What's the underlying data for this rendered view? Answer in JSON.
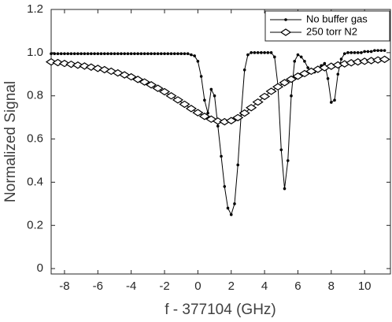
{
  "chart_data": {
    "type": "line",
    "xlabel": "f - 377104 (GHz)",
    "ylabel": "Normalized Signal",
    "xlim": [
      -8.8,
      11.55
    ],
    "ylim": [
      -0.025,
      1.2
    ],
    "xticks": [
      -8,
      -6,
      -4,
      -2,
      0,
      2,
      4,
      6,
      8,
      10
    ],
    "yticks": [
      0,
      0.2,
      0.4,
      0.6,
      0.8,
      {
        "value": 1,
        "label": "1.0"
      },
      1.2
    ],
    "grid": false,
    "legend": "upper right",
    "series": [
      {
        "name": "No buffer gas",
        "color": "#000000",
        "marker": "dot",
        "x": [
          -8.8,
          -8.6,
          -8.4,
          -8.2,
          -8.0,
          -7.8,
          -7.6,
          -7.4,
          -7.2,
          -7.0,
          -6.8,
          -6.6,
          -6.4,
          -6.2,
          -6.0,
          -5.8,
          -5.6,
          -5.4,
          -5.2,
          -5.0,
          -4.8,
          -4.6,
          -4.4,
          -4.2,
          -4.0,
          -3.8,
          -3.6,
          -3.4,
          -3.2,
          -3.0,
          -2.8,
          -2.6,
          -2.4,
          -2.2,
          -2.0,
          -1.8,
          -1.6,
          -1.4,
          -1.2,
          -1.0,
          -0.8,
          -0.6,
          -0.4,
          -0.2,
          0,
          0.2,
          0.4,
          0.6,
          0.8,
          1.0,
          1.2,
          1.4,
          1.6,
          1.8,
          2.0,
          2.2,
          2.4,
          2.6,
          2.8,
          3.0,
          3.2,
          3.4,
          3.6,
          3.8,
          4.0,
          4.2,
          4.4,
          4.6,
          4.8,
          5.0,
          5.2,
          5.4,
          5.6,
          5.8,
          6.0,
          6.2,
          6.4,
          6.6,
          6.8,
          7.0,
          7.2,
          7.4,
          7.6,
          7.8,
          8.0,
          8.2,
          8.4,
          8.6,
          8.8,
          9.0,
          9.2,
          9.4,
          9.6,
          9.8,
          10.0,
          10.2,
          10.4,
          10.6,
          10.8,
          11.0,
          11.2
        ],
        "values": [
          0.995,
          0.995,
          0.995,
          0.995,
          0.995,
          0.995,
          0.995,
          0.995,
          0.995,
          0.995,
          0.995,
          0.995,
          0.995,
          0.995,
          0.995,
          0.995,
          0.995,
          0.995,
          0.995,
          0.995,
          0.995,
          0.995,
          0.995,
          0.995,
          0.995,
          0.995,
          0.995,
          0.995,
          0.995,
          0.995,
          0.995,
          0.995,
          0.995,
          0.995,
          0.995,
          0.995,
          0.995,
          0.995,
          0.995,
          0.995,
          0.995,
          0.995,
          0.99,
          0.985,
          0.96,
          0.89,
          0.78,
          0.72,
          0.83,
          0.8,
          0.66,
          0.52,
          0.38,
          0.28,
          0.25,
          0.3,
          0.48,
          0.72,
          0.92,
          0.99,
          1.0,
          1.0,
          1.0,
          1.0,
          1.0,
          1.0,
          1.0,
          0.98,
          0.85,
          0.55,
          0.37,
          0.5,
          0.8,
          0.96,
          0.99,
          0.98,
          0.96,
          0.93,
          0.91,
          0.91,
          0.92,
          0.94,
          0.95,
          0.88,
          0.77,
          0.78,
          0.9,
          0.97,
          0.995,
          1.0,
          1.0,
          1.0,
          1.0,
          1.0,
          1.005,
          1.005,
          1.005,
          1.01,
          1.01,
          1.01,
          1.01
        ]
      },
      {
        "name": "250 torr N2",
        "color": "#000000",
        "marker": "diamond",
        "x": [
          -8.8,
          -8.4,
          -8.0,
          -7.6,
          -7.2,
          -6.8,
          -6.4,
          -6.0,
          -5.6,
          -5.2,
          -4.8,
          -4.4,
          -4.0,
          -3.6,
          -3.2,
          -2.8,
          -2.4,
          -2.0,
          -1.6,
          -1.2,
          -0.8,
          -0.4,
          0,
          0.4,
          0.8,
          1.2,
          1.6,
          2.0,
          2.4,
          2.8,
          3.2,
          3.6,
          4.0,
          4.4,
          4.8,
          5.2,
          5.6,
          6.0,
          6.4,
          6.8,
          7.2,
          7.6,
          8.0,
          8.4,
          8.8,
          9.2,
          9.6,
          10.0,
          10.4,
          10.8,
          11.2
        ],
        "values": [
          0.957,
          0.954,
          0.95,
          0.946,
          0.942,
          0.938,
          0.933,
          0.927,
          0.921,
          0.914,
          0.906,
          0.897,
          0.888,
          0.876,
          0.864,
          0.851,
          0.835,
          0.819,
          0.8,
          0.781,
          0.761,
          0.741,
          0.722,
          0.705,
          0.692,
          0.683,
          0.68,
          0.685,
          0.699,
          0.72,
          0.745,
          0.771,
          0.797,
          0.821,
          0.842,
          0.861,
          0.877,
          0.891,
          0.903,
          0.914,
          0.923,
          0.93,
          0.937,
          0.943,
          0.948,
          0.953,
          0.957,
          0.96,
          0.963,
          0.966,
          0.969
        ]
      }
    ]
  }
}
